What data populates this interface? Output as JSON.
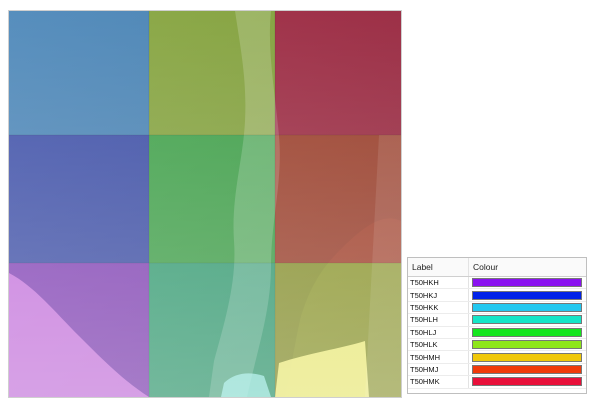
{
  "legend": {
    "header": {
      "label": "Label",
      "colour": "Colour"
    },
    "rows": [
      {
        "label": "T50HKH",
        "color": "#8a12f0"
      },
      {
        "label": "T50HKJ",
        "color": "#0022e8"
      },
      {
        "label": "T50HKK",
        "color": "#22c8f0"
      },
      {
        "label": "T50HLH",
        "color": "#14e6c8"
      },
      {
        "label": "T50HLJ",
        "color": "#14e61e"
      },
      {
        "label": "T50HLK",
        "color": "#8ee61a"
      },
      {
        "label": "T50HMH",
        "color": "#f0c80a"
      },
      {
        "label": "T50HMJ",
        "color": "#f03a0a"
      },
      {
        "label": "T50HMK",
        "color": "#e8103a"
      }
    ]
  },
  "map": {
    "tiles": [
      {
        "color": "#3a7bb2"
      },
      {
        "color": "#7d9f2e"
      },
      {
        "color": "#a51e3a"
      },
      {
        "color": "#2b3fa2"
      },
      {
        "color": "#2f9d3a"
      },
      {
        "color": "#a5361e"
      },
      {
        "color": "#7a32b4"
      },
      {
        "color": "#249a6a"
      },
      {
        "color": "#8e9a22"
      }
    ]
  }
}
